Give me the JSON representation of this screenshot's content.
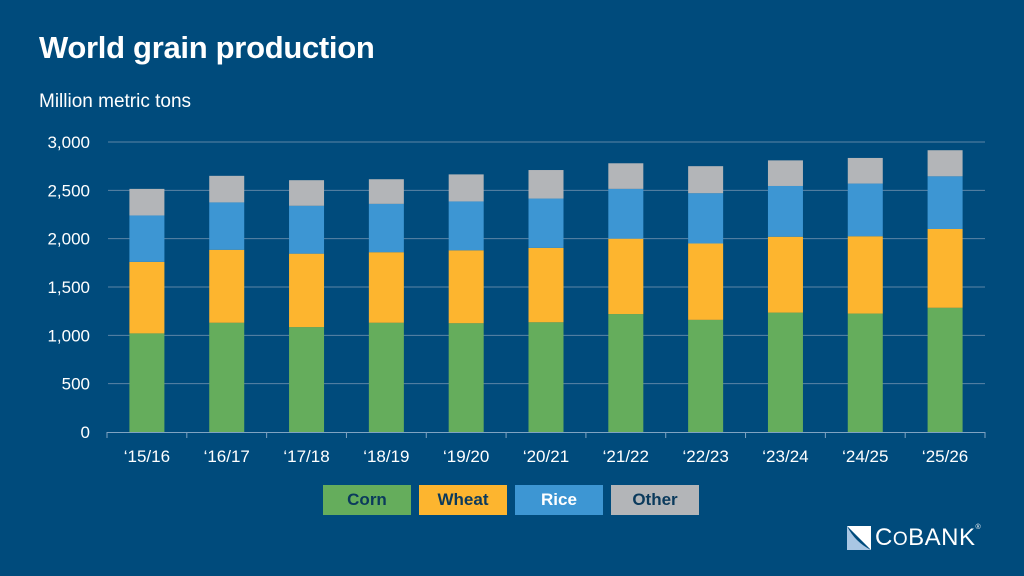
{
  "header": {
    "title": "World grain production",
    "subtitle": "Million metric tons"
  },
  "colors": {
    "background": "#004B7C",
    "corn": "#65AD5C",
    "wheat": "#FDB52F",
    "rice": "#3D96D3",
    "other": "#B3B5B8",
    "legend_dark_text": "#0B3A5C",
    "legend_light_text": "#ffffff",
    "gridline": "#5B84A6"
  },
  "legend": [
    {
      "label": "Corn",
      "color_key": "corn",
      "text_key": "legend_dark_text"
    },
    {
      "label": "Wheat",
      "color_key": "wheat",
      "text_key": "legend_dark_text"
    },
    {
      "label": "Rice",
      "color_key": "rice",
      "text_key": "legend_light_text"
    },
    {
      "label": "Other",
      "color_key": "other",
      "text_key": "legend_dark_text"
    }
  ],
  "logo": {
    "name_prefix": "C",
    "name_o": "O",
    "name_suffix": "BANK",
    "registered": "®"
  },
  "chart_data": {
    "type": "bar",
    "stacked": true,
    "title": "World grain production",
    "subtitle": "Million metric tons",
    "xlabel": "",
    "ylabel": "Million metric tons",
    "ylim": [
      0,
      3000
    ],
    "yticks": [
      0,
      500,
      1000,
      1500,
      2000,
      2500,
      3000
    ],
    "ytick_labels": [
      "0",
      "500",
      "1,000",
      "1,500",
      "2,000",
      "2,500",
      "3,000"
    ],
    "grid": true,
    "legend_position": "bottom-center",
    "categories": [
      "‘15/16",
      "‘16/17",
      "‘17/18",
      "‘18/19",
      "‘19/20",
      "‘20/21",
      "‘21/22",
      "‘22/23",
      "‘23/24",
      "‘24/25",
      "‘25/26"
    ],
    "series": [
      {
        "name": "Corn",
        "color_key": "corn",
        "values": [
          1020,
          1130,
          1085,
          1130,
          1125,
          1135,
          1220,
          1160,
          1235,
          1225,
          1285
        ]
      },
      {
        "name": "Wheat",
        "color_key": "wheat",
        "values": [
          740,
          755,
          760,
          730,
          755,
          770,
          780,
          790,
          785,
          800,
          815
        ]
      },
      {
        "name": "Rice",
        "color_key": "rice",
        "values": [
          480,
          490,
          495,
          500,
          505,
          510,
          515,
          520,
          525,
          545,
          545
        ]
      },
      {
        "name": "Other",
        "color_key": "other",
        "values": [
          275,
          275,
          265,
          255,
          280,
          295,
          265,
          280,
          265,
          265,
          270
        ]
      }
    ]
  }
}
